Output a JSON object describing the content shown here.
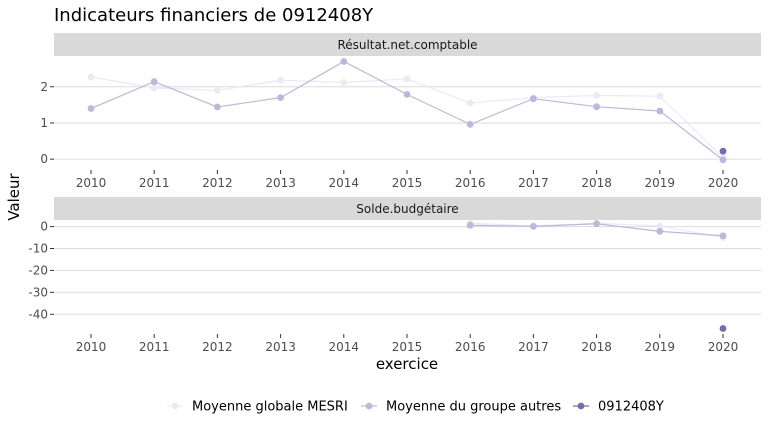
{
  "chart_data": {
    "type": "line",
    "title": "Indicateurs financiers de 0912408Y",
    "xlabel": "exercice",
    "ylabel": "Valeur",
    "x": [
      "2010",
      "2011",
      "2012",
      "2013",
      "2014",
      "2015",
      "2016",
      "2017",
      "2018",
      "2019",
      "2020"
    ],
    "legend": {
      "placement": "bottom"
    },
    "series_legend": [
      {
        "name": "Moyenne globale MESRI",
        "color": "#ebe9f3"
      },
      {
        "name": "Moyenne du groupe autres",
        "color": "#bcb8da"
      },
      {
        "name": "0912408Y",
        "color": "#756bb1"
      }
    ],
    "panels": [
      {
        "strip": "Résultat.net.comptable",
        "ylim": [
          -0.3,
          2.85
        ],
        "yticks": [
          0,
          1,
          2
        ],
        "ytick_labels": [
          "0",
          "1",
          "2"
        ],
        "series": [
          {
            "name": "Moyenne globale MESRI",
            "color": "#ebe9f3",
            "values": [
              2.27,
              1.97,
              1.9,
              2.18,
              2.12,
              2.22,
              1.55,
              1.7,
              1.76,
              1.74,
              0.05
            ]
          },
          {
            "name": "Moyenne du groupe autres",
            "color": "#bcb8da",
            "values": [
              1.4,
              2.14,
              1.44,
              1.7,
              2.7,
              1.79,
              0.96,
              1.67,
              1.45,
              1.33,
              -0.02
            ]
          },
          {
            "name": "0912408Y",
            "color": "#756bb1",
            "values": [
              null,
              null,
              null,
              null,
              null,
              null,
              null,
              null,
              null,
              null,
              0.22
            ]
          }
        ]
      },
      {
        "strip": "Solde.budgétaire",
        "ylim": [
          -49,
          3
        ],
        "yticks": [
          0,
          -10,
          -20,
          -30,
          -40
        ],
        "ytick_labels": [
          "0",
          "-10",
          "-20",
          "-30",
          "-40"
        ],
        "series": [
          {
            "name": "Moyenne globale MESRI",
            "color": "#ebe9f3",
            "values": [
              null,
              null,
              null,
              null,
              null,
              null,
              1.5,
              0.3,
              1.5,
              0.3,
              -5.0
            ]
          },
          {
            "name": "Moyenne du groupe autres",
            "color": "#bcb8da",
            "values": [
              null,
              null,
              null,
              null,
              null,
              null,
              0.6,
              0.1,
              1.3,
              -2.2,
              -4.2
            ]
          },
          {
            "name": "0912408Y",
            "color": "#756bb1",
            "values": [
              null,
              null,
              null,
              null,
              null,
              null,
              null,
              null,
              null,
              null,
              -46.5
            ]
          }
        ]
      }
    ]
  }
}
